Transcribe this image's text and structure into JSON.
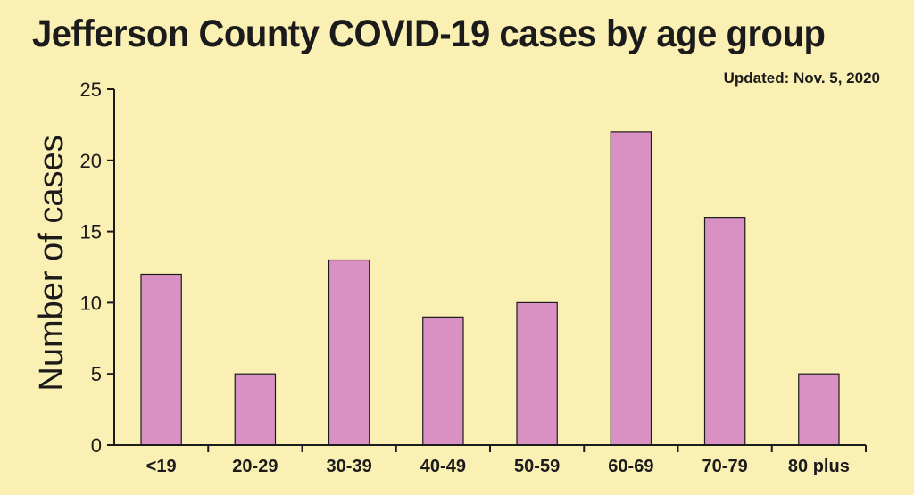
{
  "chart_data": {
    "type": "bar",
    "title": "Jefferson County COVID-19 cases by age group",
    "subtitle": "Updated: Nov. 5, 2020",
    "xlabel": "",
    "ylabel": "Number of cases",
    "categories": [
      "<19",
      "20-29",
      "30-39",
      "40-49",
      "50-59",
      "60-69",
      "70-79",
      "80 plus"
    ],
    "values": [
      12,
      5,
      13,
      9,
      10,
      22,
      16,
      5
    ],
    "ylim": [
      0,
      25
    ],
    "yticks": [
      0,
      5,
      10,
      15,
      20,
      25
    ],
    "grid": false,
    "colors": {
      "bar": "#d991c3",
      "bar_edge": "#1b1b1b",
      "background": "#fbf0b4",
      "axis": "#1b1b1b"
    }
  }
}
